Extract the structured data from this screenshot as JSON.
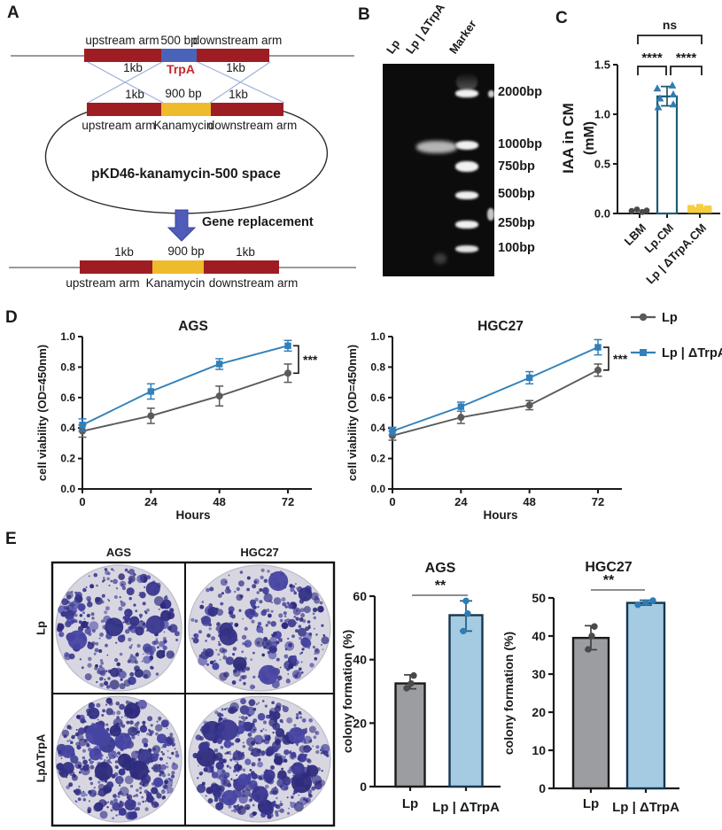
{
  "figure": {
    "panel_a": {
      "letter": "A",
      "top": {
        "upstream": "upstream arm",
        "size": "500 bp",
        "downstream": "downstream arm",
        "left_kb": "1kb",
        "right_kb": "1kb",
        "gene": "TrpA"
      },
      "mid": {
        "left_kb": "1kb",
        "size": "900 bp",
        "right_kb": "1kb",
        "upstream": "upstream arm",
        "gene": "Kanamycin",
        "downstream": "downstream arm"
      },
      "plasmid_name": "pKD46-kanamycin-500 space",
      "arrow_label": "Gene replacement",
      "bottom": {
        "left_kb": "1kb",
        "size": "900 bp",
        "right_kb": "1kb",
        "upstream": "upstream arm",
        "gene": "Kanamycin",
        "downstream": "downstream arm"
      }
    },
    "panel_b": {
      "letter": "B",
      "lane_labels": [
        "Lp",
        "Lp | ΔTrpA",
        "Marker"
      ],
      "marker_labels": [
        "2000bp",
        "1000bp",
        "750bp",
        "500bp",
        "250bp",
        "100bp"
      ],
      "sample_band_lane": "Lp | ΔTrpA"
    },
    "panel_c": {
      "letter": "C"
    },
    "panel_d": {
      "letter": "D"
    },
    "panel_e": {
      "letter": "E",
      "col_labels": [
        "AGS",
        "HGC27"
      ],
      "row_labels": [
        "Lp",
        "LpΔTrpA"
      ],
      "wells": [
        {
          "row": "Lp",
          "col": "AGS",
          "seed": 7,
          "density": 280,
          "blobs": 6
        },
        {
          "row": "Lp",
          "col": "HGC27",
          "seed": 11,
          "density": 310,
          "blobs": 8
        },
        {
          "row": "LpΔTrpA",
          "col": "AGS",
          "seed": 23,
          "density": 430,
          "blobs": 16
        },
        {
          "row": "LpΔTrpA",
          "col": "HGC27",
          "seed": 31,
          "density": 470,
          "blobs": 18
        }
      ]
    }
  },
  "colors": {
    "arm_red": "#9e1d23",
    "trpa_blue": "#4a63b8",
    "kanamycin_yellow": "#eebb2c",
    "trpa_text_red": "#c8252c",
    "crossover_blue": "#9fb0dc",
    "arrow_blue": "#4f5cb8",
    "lp_gray": "#595a5c",
    "trpa_line_blue": "#3180b9",
    "bar_gray": "#9c9da0",
    "bar_blue": "#a5cbe2",
    "bar_blue_edge": "#16364e",
    "iaa_bar_edge": "#1b5d73",
    "iaa_yellow": "#f5cf3f",
    "colony_dot_purple": "#3a3790",
    "well_bg": "#d8d7e1"
  },
  "chart_data": [
    {
      "id": "iaa_cm",
      "type": "bar",
      "ylabel": "IAA in CM",
      "ylabel2": "(mM)",
      "categories": [
        "LBM",
        "Lp.CM",
        "Lp | ΔTrpA.CM"
      ],
      "values": [
        0.02,
        1.18,
        0.06
      ],
      "errors_low": [
        0,
        0.095,
        0
      ],
      "errors_high": [
        0,
        0.1,
        0
      ],
      "points": [
        [
          0.025,
          0.04,
          0.015,
          0.03
        ],
        [
          1.26,
          1.29,
          1.16,
          1.2,
          1.07,
          1.1
        ],
        [
          0.05,
          0.06,
          0.045
        ]
      ],
      "ylim": [
        0,
        1.5
      ],
      "yticks": [
        "0.0",
        "0.5",
        "1.0",
        "1.5"
      ],
      "bar_fill": [
        "none",
        "#ffffff",
        "#f5cf3f"
      ],
      "bar_edge": [
        "none",
        "#1b5d73",
        "#f0c832"
      ],
      "point_colors": [
        "#4a4a4c",
        "#2d7cb5",
        "#f5cf3f"
      ],
      "significance": [
        {
          "label": "****",
          "between": [
            "LBM",
            "Lp.CM"
          ]
        },
        {
          "label": "****",
          "between": [
            "Lp.CM",
            "Lp | ΔTrpA.CM"
          ]
        },
        {
          "label": "ns",
          "between": [
            "LBM",
            "Lp | ΔTrpA.CM"
          ]
        }
      ]
    },
    {
      "id": "viability_ags",
      "type": "line",
      "title": "AGS",
      "xlabel": "Hours",
      "ylabel": "cell viability (OD=450nm)",
      "x": [
        0,
        24,
        48,
        72
      ],
      "xticks": [
        "0",
        "24",
        "48",
        "72"
      ],
      "ylim": [
        0,
        1.0
      ],
      "yticks": [
        "0.0",
        "0.2",
        "0.4",
        "0.6",
        "0.8",
        "1.0"
      ],
      "series": [
        {
          "name": "Lp",
          "marker": "circle",
          "color": "#595a5c",
          "values": [
            0.38,
            0.48,
            0.61,
            0.76
          ],
          "errors": [
            0.04,
            0.05,
            0.065,
            0.06
          ]
        },
        {
          "name": "Lp | ΔTrpA",
          "marker": "square",
          "color": "#3180b9",
          "values": [
            0.42,
            0.64,
            0.82,
            0.94
          ],
          "errors": [
            0.04,
            0.05,
            0.035,
            0.035
          ]
        }
      ],
      "significance": "***",
      "legend": false
    },
    {
      "id": "viability_hgc27",
      "type": "line",
      "title": "HGC27",
      "xlabel": "Hours",
      "ylabel": "cell viability (OD=450nm)",
      "x": [
        0,
        24,
        48,
        72
      ],
      "xticks": [
        "0",
        "24",
        "48",
        "72"
      ],
      "ylim": [
        0,
        1.0
      ],
      "yticks": [
        "0.0",
        "0.2",
        "0.4",
        "0.6",
        "0.8",
        "1.0"
      ],
      "series": [
        {
          "name": "Lp",
          "marker": "circle",
          "color": "#595a5c",
          "values": [
            0.35,
            0.47,
            0.55,
            0.78
          ],
          "errors": [
            0.03,
            0.04,
            0.03,
            0.04
          ]
        },
        {
          "name": "Lp | ΔTrpA",
          "marker": "square",
          "color": "#3180b9",
          "values": [
            0.38,
            0.54,
            0.73,
            0.93
          ],
          "errors": [
            0.025,
            0.03,
            0.04,
            0.05
          ]
        }
      ],
      "significance": "***",
      "legend": true
    },
    {
      "id": "colony_ags",
      "type": "bar",
      "title": "AGS",
      "ylabel": "colony formation (%)",
      "categories": [
        "Lp",
        "Lp | ΔTrpA"
      ],
      "values": [
        32.5,
        54
      ],
      "points": [
        [
          31,
          32.5,
          35
        ],
        [
          49,
          54.5,
          58.5
        ]
      ],
      "errors": [
        [
          30.8,
          35.2
        ],
        [
          49,
          58.5
        ]
      ],
      "ylim": [
        0,
        60
      ],
      "yticks": [
        "0",
        "20",
        "40",
        "60"
      ],
      "bar_fill": [
        "#9c9da0",
        "#a5cbe2"
      ],
      "bar_edge": [
        "#1a1a1a",
        "#16364e"
      ],
      "point_colors": [
        "#4a4a4c",
        "#2d7cb5"
      ],
      "err_colors": [
        "#3f3f41",
        "#1d5b82"
      ],
      "significance": "**"
    },
    {
      "id": "colony_hgc27",
      "type": "bar",
      "title": "HGC27",
      "ylabel": "colony formation (%)",
      "categories": [
        "Lp",
        "Lp | ΔTrpA"
      ],
      "values": [
        39.5,
        48.7
      ],
      "points": [
        [
          36.5,
          40,
          42.5
        ],
        [
          48.2,
          48.8,
          49.3
        ]
      ],
      "errors": [
        [
          36.4,
          42.7
        ],
        [
          48.1,
          49.4
        ]
      ],
      "ylim": [
        0,
        50
      ],
      "yticks": [
        "0",
        "10",
        "20",
        "30",
        "40",
        "50"
      ],
      "bar_fill": [
        "#9c9da0",
        "#a5cbe2"
      ],
      "bar_edge": [
        "#1a1a1a",
        "#16364e"
      ],
      "point_colors": [
        "#4a4a4c",
        "#2d7cb5"
      ],
      "err_colors": [
        "#3f3f41",
        "#1d5b82"
      ],
      "significance": "**"
    }
  ]
}
